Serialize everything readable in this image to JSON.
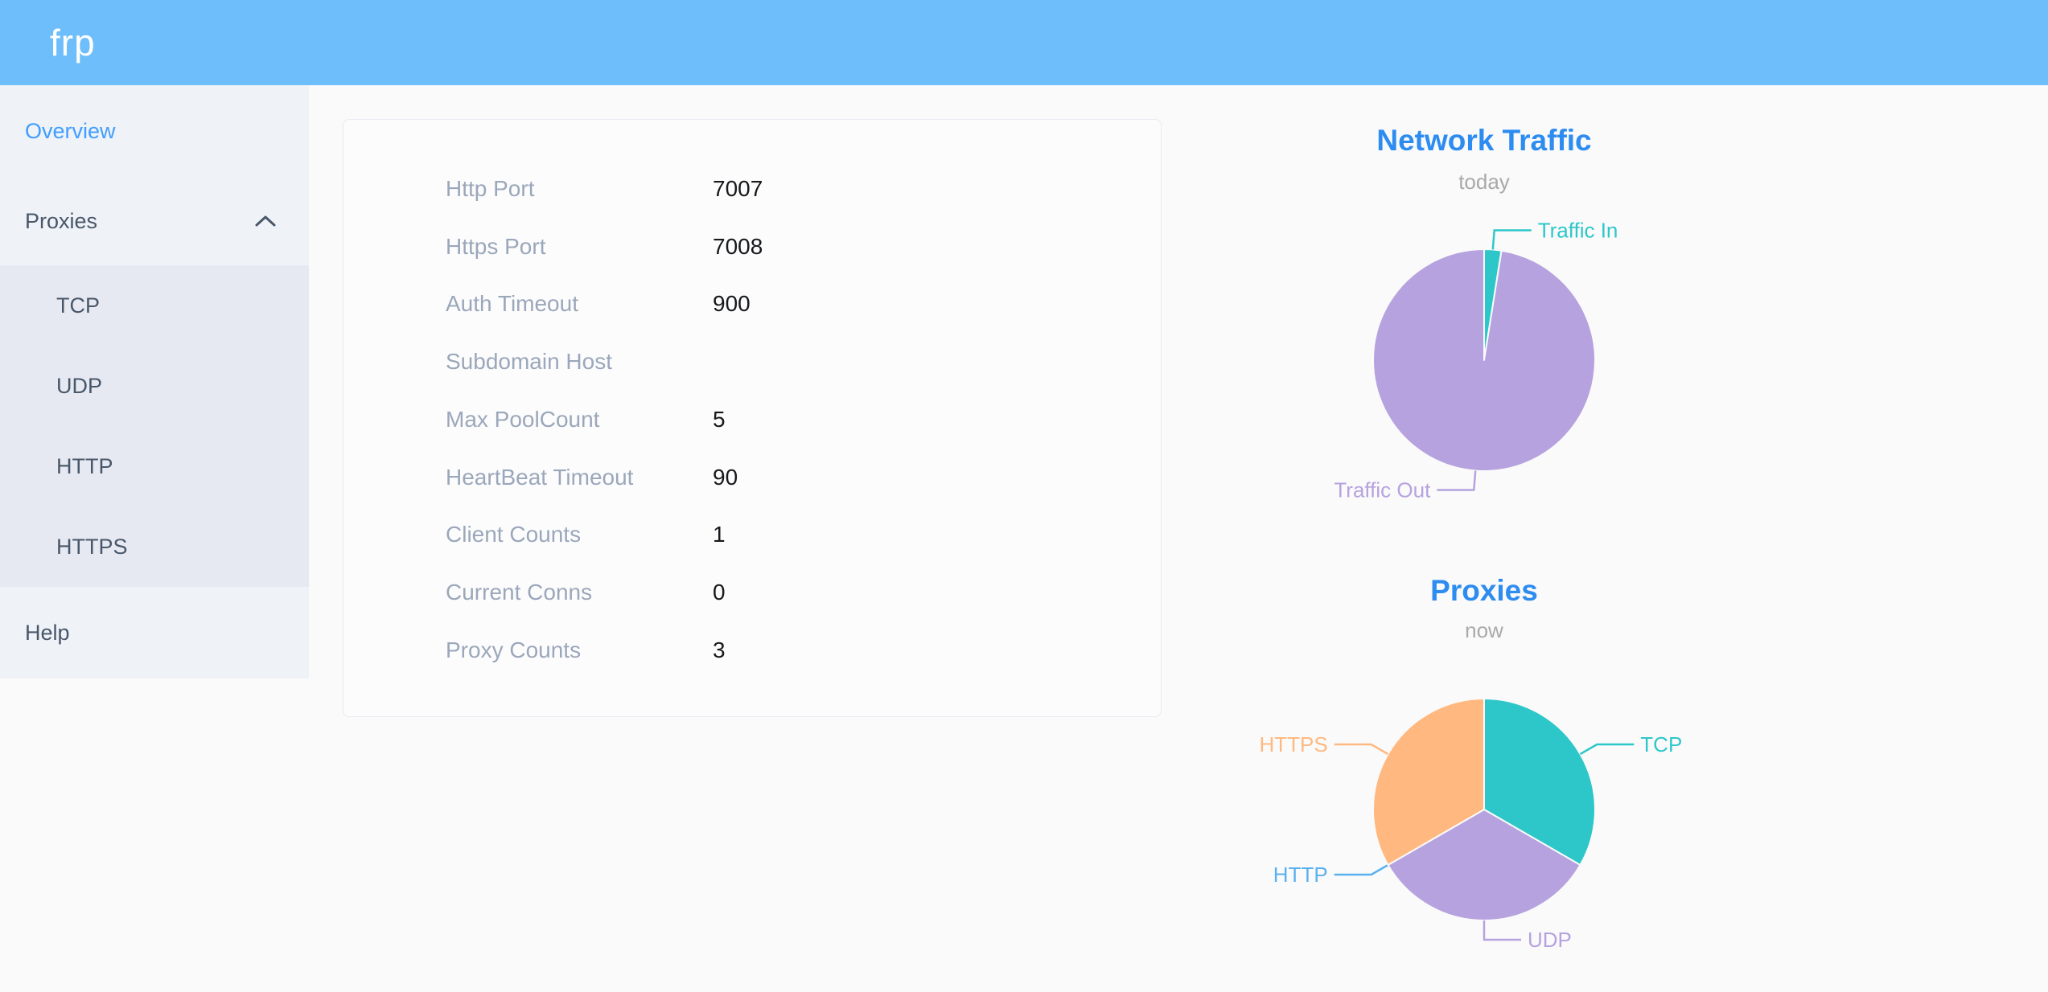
{
  "theme": {
    "header_bg": "#6dbefb",
    "sidebar_bg": "#eff2f7",
    "submenu_bg": "#e6e9f2",
    "menu_text": "#48576a",
    "active_link": "#409eff",
    "title_blue": "#2d8cf0",
    "label_gray": "#9ba7ba",
    "subtitle_gray": "#a9a9a9",
    "page_bg": "#fafafb"
  },
  "header": {
    "logo": "frp"
  },
  "sidebar": {
    "overview": {
      "label": "Overview",
      "active": true
    },
    "proxies": {
      "label": "Proxies",
      "expanded": true
    },
    "proxy_types": [
      {
        "label": "TCP"
      },
      {
        "label": "UDP"
      },
      {
        "label": "HTTP"
      },
      {
        "label": "HTTPS"
      }
    ],
    "help": {
      "label": "Help"
    }
  },
  "overview_card": {
    "rows": [
      {
        "label": "Http Port",
        "value": "7007"
      },
      {
        "label": "Https Port",
        "value": "7008"
      },
      {
        "label": "Auth Timeout",
        "value": "900"
      },
      {
        "label": "Subdomain Host",
        "value": ""
      },
      {
        "label": "Max PoolCount",
        "value": "5"
      },
      {
        "label": "HeartBeat Timeout",
        "value": "90"
      },
      {
        "label": "Client Counts",
        "value": "1"
      },
      {
        "label": "Current Conns",
        "value": "0"
      },
      {
        "label": "Proxy Counts",
        "value": "3"
      }
    ]
  },
  "chart_data": [
    {
      "type": "pie",
      "title": "Network Traffic",
      "subtitle": "today",
      "legend_position": "none",
      "values_unit": "estimated percent of circle (no numbers shown in UI)",
      "slices": [
        {
          "name": "Traffic In",
          "value": 2.5,
          "color": "#2ec7c9"
        },
        {
          "name": "Traffic Out",
          "value": 97.5,
          "color": "#b6a2de"
        }
      ]
    },
    {
      "type": "pie",
      "title": "Proxies",
      "subtitle": "now",
      "legend_position": "none",
      "values_unit": "proxy count",
      "slices": [
        {
          "name": "TCP",
          "value": 1,
          "color": "#2ec7c9"
        },
        {
          "name": "UDP",
          "value": 1,
          "color": "#b6a2de",
          "label_side": "right"
        },
        {
          "name": "HTTP",
          "value": 0,
          "color": "#5ab1ef"
        },
        {
          "name": "HTTPS",
          "value": 1,
          "color": "#ffb980"
        }
      ]
    }
  ]
}
